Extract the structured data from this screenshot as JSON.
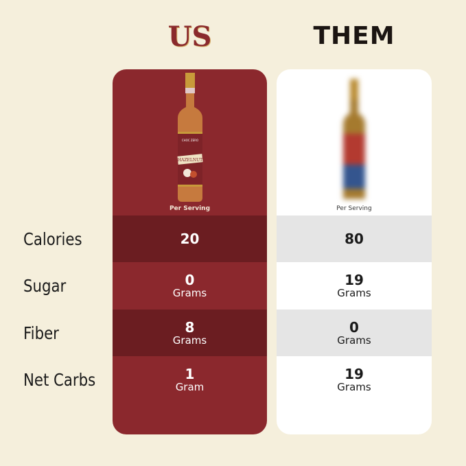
{
  "headers": {
    "us": "US",
    "them": "THEM"
  },
  "us": {
    "product_label": "HAZELNUT",
    "brand": "CHOC ZERO",
    "per_serving": "Per Serving",
    "rows": [
      {
        "value": "20",
        "unit": ""
      },
      {
        "value": "0",
        "unit": "Grams"
      },
      {
        "value": "8",
        "unit": "Grams"
      },
      {
        "value": "1",
        "unit": "Gram"
      }
    ]
  },
  "them": {
    "per_serving": "Per Serving",
    "rows": [
      {
        "value": "80",
        "unit": ""
      },
      {
        "value": "19",
        "unit": "Grams"
      },
      {
        "value": "0",
        "unit": "Grams"
      },
      {
        "value": "19",
        "unit": "Grams"
      }
    ]
  },
  "labels": [
    "Calories",
    "Sugar",
    "Fiber",
    "Net Carbs"
  ],
  "colors": {
    "background": "#f5efdc",
    "us_card": "#8b282d",
    "us_dark_row": "#6b1d21",
    "them_card": "#ffffff",
    "them_dark_row": "#e5e5e5"
  }
}
